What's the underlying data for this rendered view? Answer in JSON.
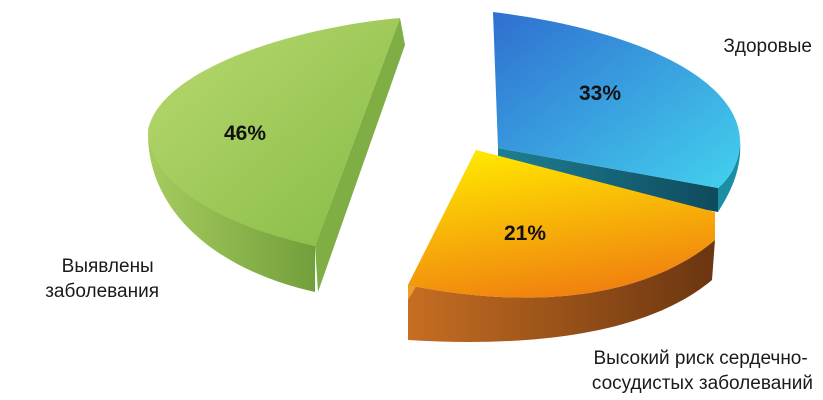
{
  "chart_data": {
    "type": "pie",
    "title": "",
    "slices": [
      {
        "name": "Здоровые",
        "value": 33,
        "percent_label": "33%",
        "colors": {
          "top_light": "#2f6fd0",
          "top_dark": "#43d1ee",
          "side_light": "#1e7f92",
          "side_dark": "#0f4a5e"
        }
      },
      {
        "name": "Высокий риск сердечно-сосудистых заболеваний",
        "value": 21,
        "percent_label": "21%",
        "colors": {
          "top_light": "#ffe600",
          "top_dark": "#f07e10",
          "side_light": "#c66e22",
          "side_dark": "#6b3510"
        }
      },
      {
        "name": "Выявлены заболевания",
        "value": 46,
        "percent_label": "46%",
        "colors": {
          "top_light": "#b9d970",
          "top_dark": "#86bb44",
          "side_light": "#a6cc5f",
          "side_dark": "#739f3b"
        }
      }
    ],
    "legend": {
      "placement": "labels-outside",
      "lines": [
        [
          "Здоровые"
        ],
        [
          "Высокий риск сердечно-",
          "сосудистых заболеваний"
        ],
        [
          "Выявлены",
          "заболевания"
        ]
      ]
    }
  }
}
